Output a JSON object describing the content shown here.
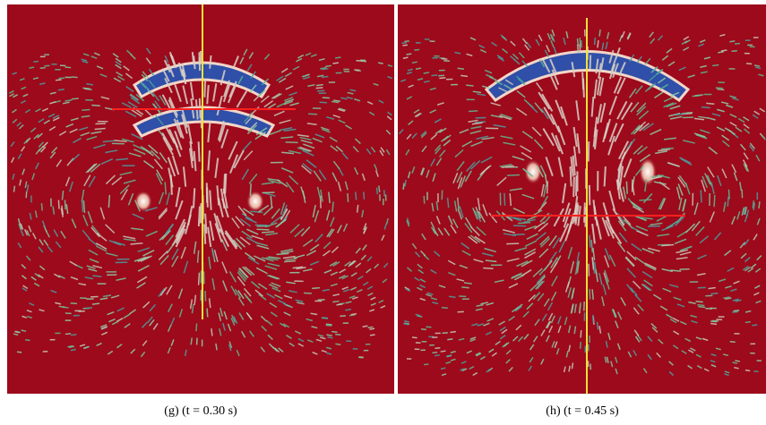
{
  "panels": [
    {
      "caption": "(g) (t = 0.30 s)"
    },
    {
      "caption": "(h) (t = 0.45 s)"
    }
  ]
}
